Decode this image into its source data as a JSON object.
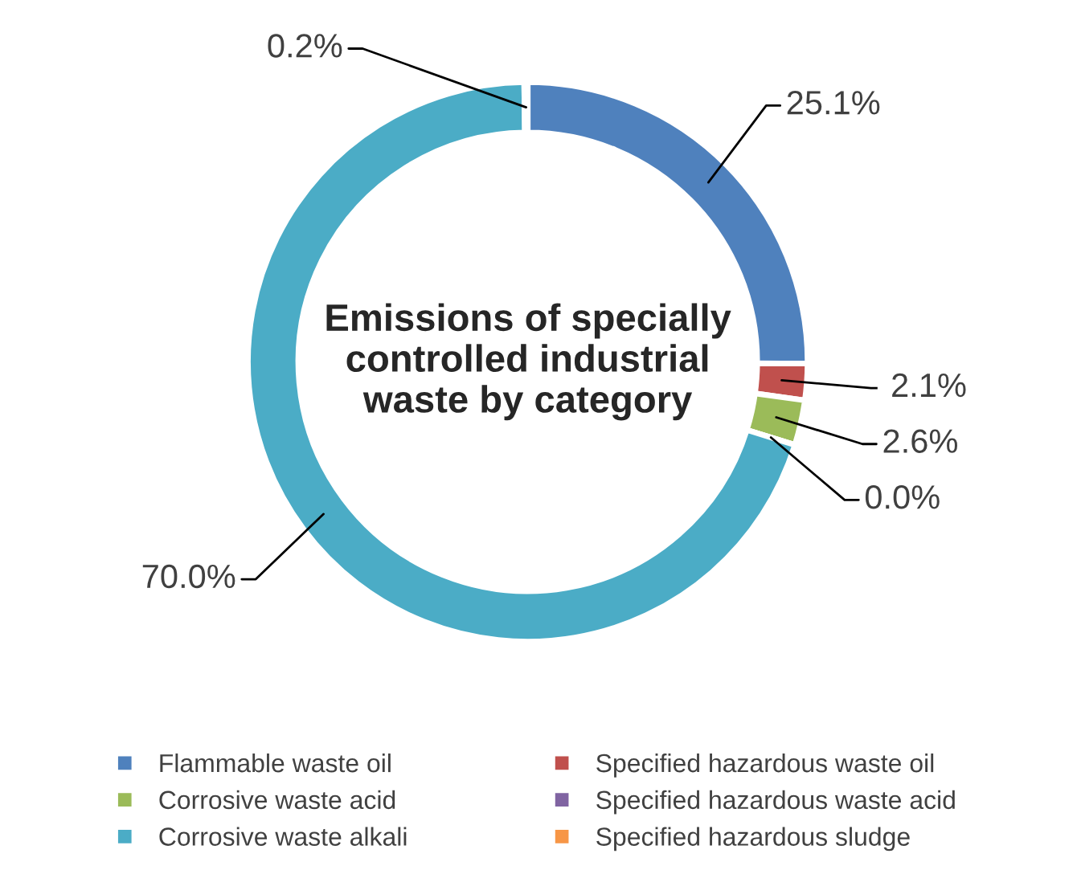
{
  "chart_data": {
    "type": "donut",
    "title": "Emissions of specially controlled industrial waste by category",
    "categories": [
      "Flammable waste oil",
      "Specified hazardous waste oil",
      "Corrosive waste acid",
      "Specified hazardous waste acid",
      "Corrosive waste alkali",
      "Specified hazardous sludge"
    ],
    "values": [
      25.1,
      2.1,
      2.6,
      0.0,
      70.0,
      0.2
    ],
    "value_labels": [
      "25.1%",
      "2.1%",
      "2.6%",
      "0.0%",
      "70.0%",
      "0.2%"
    ],
    "colors": [
      "#4f81bd",
      "#c0504d",
      "#9bbb59",
      "#8064a2",
      "#4bacc6",
      "#f79646"
    ],
    "legend": "bottom"
  }
}
